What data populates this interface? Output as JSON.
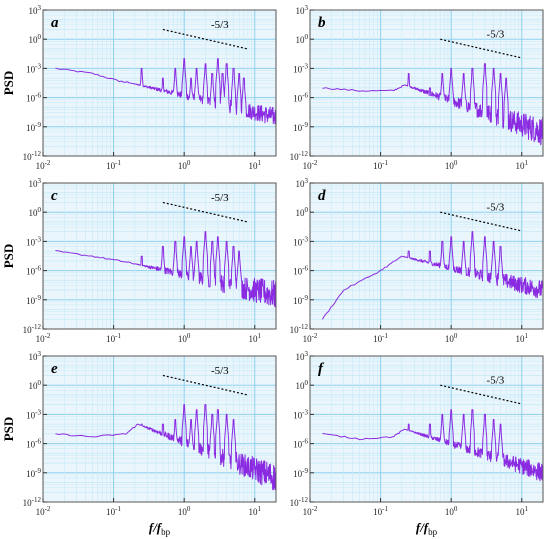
{
  "chart_data": [
    {
      "panel": "a",
      "type": "line",
      "scale": "log-log",
      "xlim": [
        0.01,
        20
      ],
      "ylim": [
        1e-12,
        1000
      ],
      "grid": true,
      "x_ticks": [
        "10-2",
        "10-1",
        "100",
        "101"
      ],
      "y_ticks": [
        "10-12",
        "10-9",
        "10-6",
        "10-3",
        "100",
        "103"
      ],
      "ylabel": "PSD",
      "xlabel": "",
      "series_color": "#8a2be2",
      "baseline": [
        [
          0.015,
          0.001
        ],
        [
          0.05,
          0.0003
        ],
        [
          0.12,
          5e-05
        ],
        [
          0.18,
          3e-05
        ]
      ],
      "peaks": [
        [
          0.25,
          0.001
        ],
        [
          0.5,
          0.0001
        ],
        [
          0.75,
          0.001
        ],
        [
          1.0,
          0.01
        ],
        [
          1.25,
          0.0001
        ],
        [
          1.5,
          0.001
        ],
        [
          2.0,
          0.003
        ],
        [
          2.5,
          0.0003
        ],
        [
          3.0,
          0.01
        ],
        [
          3.5,
          0.0003
        ],
        [
          4.0,
          0.003
        ],
        [
          5.0,
          0.001
        ],
        [
          6.0,
          0.0003
        ],
        [
          7.0,
          0.0001
        ]
      ],
      "noise_floor_high_f": [
        1e-09,
        1e-07
      ],
      "reference_line": {
        "label": "-5/3",
        "slope": -1.6667,
        "x": [
          0.5,
          8
        ],
        "y_at_start": 10
      }
    },
    {
      "panel": "b",
      "type": "line",
      "scale": "log-log",
      "xlim": [
        0.01,
        20
      ],
      "ylim": [
        1e-12,
        1000
      ],
      "grid": true,
      "x_ticks": [
        "10-2",
        "10-1",
        "100",
        "101"
      ],
      "y_ticks": [
        "10-12",
        "10-9",
        "10-6",
        "10-3",
        "100",
        "103"
      ],
      "ylabel": "",
      "xlabel": "",
      "series_color": "#8a2be2",
      "baseline": [
        [
          0.015,
          1e-05
        ],
        [
          0.05,
          5e-06
        ],
        [
          0.15,
          5e-06
        ],
        [
          0.22,
          2e-05
        ]
      ],
      "peaks": [
        [
          0.25,
          0.0003
        ],
        [
          0.5,
          1e-05
        ],
        [
          0.75,
          0.0003
        ],
        [
          1.0,
          0.001
        ],
        [
          1.5,
          0.0003
        ],
        [
          2.0,
          0.001
        ],
        [
          3.0,
          0.003
        ],
        [
          4.0,
          0.001
        ],
        [
          5.0,
          0.0003
        ],
        [
          6.0,
          0.0001
        ]
      ],
      "noise_floor_high_f": [
        1e-11,
        1e-08
      ],
      "reference_line": {
        "label": "-5/3",
        "slope": -1.6667,
        "x": [
          0.7,
          10
        ],
        "y_at_start": 1
      }
    },
    {
      "panel": "c",
      "type": "line",
      "scale": "log-log",
      "xlim": [
        0.01,
        20
      ],
      "ylim": [
        1e-12,
        1000
      ],
      "grid": true,
      "x_ticks": [
        "10-2",
        "10-1",
        "100",
        "101"
      ],
      "y_ticks": [
        "10-12",
        "10-9",
        "10-6",
        "10-3",
        "100",
        "103"
      ],
      "ylabel": "PSD",
      "xlabel": "",
      "series_color": "#8a2be2",
      "baseline": [
        [
          0.015,
          0.0001
        ],
        [
          0.05,
          3e-05
        ],
        [
          0.12,
          1e-05
        ],
        [
          0.2,
          5e-06
        ]
      ],
      "peaks": [
        [
          0.25,
          3e-05
        ],
        [
          0.5,
          0.0003
        ],
        [
          0.75,
          0.001
        ],
        [
          1.0,
          0.003
        ],
        [
          1.25,
          0.0003
        ],
        [
          1.5,
          0.001
        ],
        [
          2.0,
          0.01
        ],
        [
          2.5,
          0.001
        ],
        [
          3.0,
          0.003
        ],
        [
          4.0,
          0.001
        ],
        [
          5.0,
          0.0003
        ],
        [
          6.0,
          0.0001
        ]
      ],
      "noise_floor_high_f": [
        1e-10,
        1e-07
      ],
      "reference_line": {
        "label": "-5/3",
        "slope": -1.6667,
        "x": [
          0.5,
          8
        ],
        "y_at_start": 10
      }
    },
    {
      "panel": "d",
      "type": "line",
      "scale": "log-log",
      "xlim": [
        0.01,
        20
      ],
      "ylim": [
        1e-12,
        1000
      ],
      "grid": true,
      "x_ticks": [
        "10-2",
        "10-1",
        "100",
        "101"
      ],
      "y_ticks": [
        "10-12",
        "10-9",
        "10-6",
        "10-3",
        "100",
        "103"
      ],
      "ylabel": "",
      "xlabel": "",
      "series_color": "#8a2be2",
      "baseline": [
        [
          0.015,
          1e-11
        ],
        [
          0.03,
          1e-08
        ],
        [
          0.1,
          1e-06
        ],
        [
          0.2,
          3e-05
        ]
      ],
      "peaks": [
        [
          0.25,
          0.0001
        ],
        [
          0.5,
          0.0001
        ],
        [
          0.75,
          0.001
        ],
        [
          1.0,
          0.003
        ],
        [
          1.5,
          0.001
        ],
        [
          2.0,
          0.01
        ],
        [
          3.0,
          0.003
        ],
        [
          4.0,
          0.001
        ],
        [
          5.0,
          0.0003
        ]
      ],
      "noise_floor_high_f": [
        1e-09,
        1e-07
      ],
      "reference_line": {
        "label": "-5/3",
        "slope": -1.6667,
        "x": [
          0.7,
          10
        ],
        "y_at_start": 1
      }
    },
    {
      "panel": "e",
      "type": "line",
      "scale": "log-log",
      "xlim": [
        0.01,
        20
      ],
      "ylim": [
        1e-12,
        1000
      ],
      "grid": true,
      "x_ticks": [
        "10-2",
        "10-1",
        "100",
        "101"
      ],
      "y_ticks": [
        "10-12",
        "10-9",
        "10-6",
        "10-3",
        "100",
        "103"
      ],
      "ylabel": "PSD",
      "xlabel": "f/fbp",
      "series_color": "#8a2be2",
      "baseline": [
        [
          0.015,
          1e-05
        ],
        [
          0.05,
          5e-06
        ],
        [
          0.15,
          1e-05
        ],
        [
          0.22,
          0.0001
        ]
      ],
      "peaks": [
        [
          0.25,
          0.0001
        ],
        [
          0.5,
          0.0001
        ],
        [
          0.75,
          0.0003
        ],
        [
          1.0,
          0.01
        ],
        [
          1.25,
          0.0003
        ],
        [
          1.5,
          0.003
        ],
        [
          2.0,
          0.01
        ],
        [
          2.5,
          0.001
        ],
        [
          3.0,
          0.003
        ],
        [
          4.0,
          0.001
        ],
        [
          5.0,
          0.0003
        ]
      ],
      "noise_floor_high_f": [
        1e-11,
        1e-08
      ],
      "reference_line": {
        "label": "-5/3",
        "slope": -1.6667,
        "x": [
          0.5,
          8
        ],
        "y_at_start": 10
      }
    },
    {
      "panel": "f",
      "type": "line",
      "scale": "log-log",
      "xlim": [
        0.01,
        20
      ],
      "ylim": [
        1e-12,
        1000
      ],
      "grid": true,
      "x_ticks": [
        "10-2",
        "10-1",
        "100",
        "101"
      ],
      "y_ticks": [
        "10-12",
        "10-9",
        "10-6",
        "10-3",
        "100",
        "103"
      ],
      "ylabel": "",
      "xlabel": "f/fbp",
      "series_color": "#8a2be2",
      "baseline": [
        [
          0.015,
          1e-05
        ],
        [
          0.05,
          3e-06
        ],
        [
          0.15,
          5e-06
        ],
        [
          0.22,
          3e-05
        ]
      ],
      "peaks": [
        [
          0.25,
          0.0001
        ],
        [
          0.5,
          0.0001
        ],
        [
          0.75,
          0.001
        ],
        [
          1.0,
          0.003
        ],
        [
          1.5,
          0.001
        ],
        [
          2.0,
          0.003
        ],
        [
          3.0,
          0.001
        ],
        [
          4.0,
          0.0003
        ],
        [
          5.0,
          0.0001
        ]
      ],
      "noise_floor_high_f": [
        1e-10,
        1e-08
      ],
      "reference_line": {
        "label": "-5/3",
        "slope": -1.6667,
        "x": [
          0.7,
          10
        ],
        "y_at_start": 1
      }
    }
  ],
  "colors": {
    "grid_major": "#8ed0ee",
    "grid_minor": "#c8e9f7",
    "panel_bg": "#eaf6fc",
    "series": "#8a2be2"
  }
}
